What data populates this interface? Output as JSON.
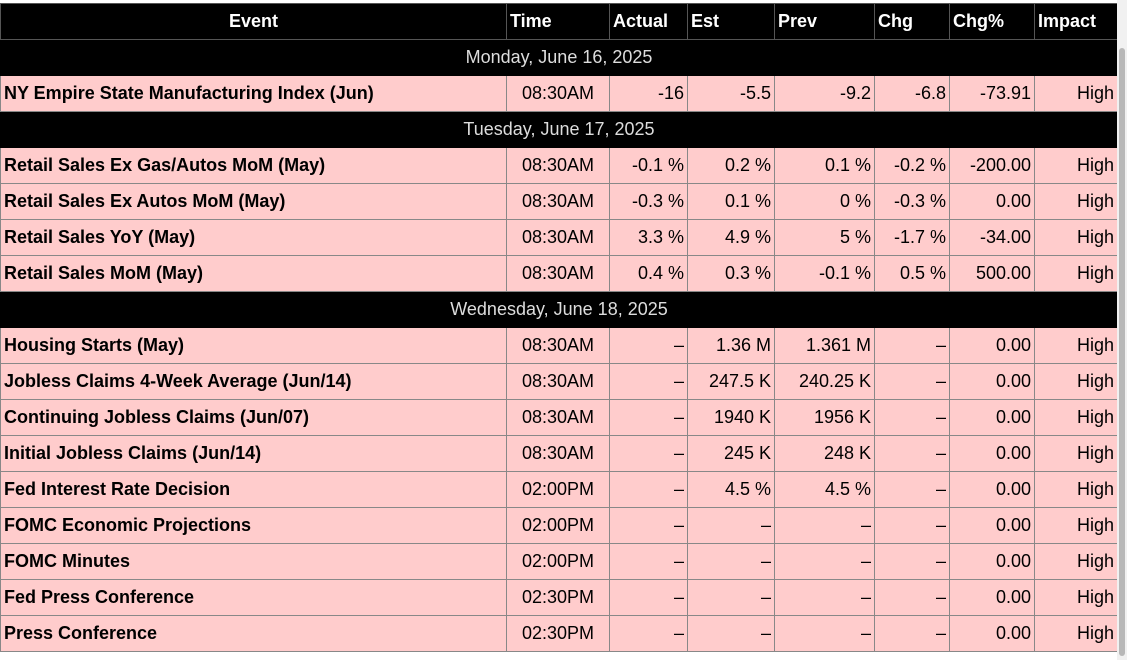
{
  "columns": [
    "Event",
    "Time",
    "Actual",
    "Est",
    "Prev",
    "Chg",
    "Chg%",
    "Impact"
  ],
  "groups": [
    {
      "date": "Monday, June 16, 2025",
      "rows": [
        [
          "NY Empire State Manufacturing Index (Jun)",
          "08:30AM",
          "-16",
          "-5.5",
          "-9.2",
          "-6.8",
          "-73.91",
          "High"
        ]
      ]
    },
    {
      "date": "Tuesday, June 17, 2025",
      "rows": [
        [
          "Retail Sales Ex Gas/Autos MoM (May)",
          "08:30AM",
          "-0.1 %",
          "0.2 %",
          "0.1 %",
          "-0.2 %",
          "-200.00",
          "High"
        ],
        [
          "Retail Sales Ex Autos MoM (May)",
          "08:30AM",
          "-0.3 %",
          "0.1 %",
          "0 %",
          "-0.3 %",
          "0.00",
          "High"
        ],
        [
          "Retail Sales YoY (May)",
          "08:30AM",
          "3.3 %",
          "4.9 %",
          "5 %",
          "-1.7 %",
          "-34.00",
          "High"
        ],
        [
          "Retail Sales MoM (May)",
          "08:30AM",
          "0.4 %",
          "0.3 %",
          "-0.1 %",
          "0.5 %",
          "500.00",
          "High"
        ]
      ]
    },
    {
      "date": "Wednesday, June 18, 2025",
      "rows": [
        [
          "Housing Starts (May)",
          "08:30AM",
          "–",
          "1.36 M",
          "1.361 M",
          "–",
          "0.00",
          "High"
        ],
        [
          "Jobless Claims 4-Week Average (Jun/14)",
          "08:30AM",
          "–",
          "247.5 K",
          "240.25 K",
          "–",
          "0.00",
          "High"
        ],
        [
          "Continuing Jobless Claims (Jun/07)",
          "08:30AM",
          "–",
          "1940 K",
          "1956 K",
          "–",
          "0.00",
          "High"
        ],
        [
          "Initial Jobless Claims (Jun/14)",
          "08:30AM",
          "–",
          "245 K",
          "248 K",
          "–",
          "0.00",
          "High"
        ],
        [
          "Fed Interest Rate Decision",
          "02:00PM",
          "–",
          "4.5 %",
          "4.5 %",
          "–",
          "0.00",
          "High"
        ],
        [
          "FOMC Economic Projections",
          "02:00PM",
          "–",
          "–",
          "–",
          "–",
          "0.00",
          "High"
        ],
        [
          "FOMC Minutes",
          "02:00PM",
          "–",
          "–",
          "–",
          "–",
          "0.00",
          "High"
        ],
        [
          "Fed Press Conference",
          "02:30PM",
          "–",
          "–",
          "–",
          "–",
          "0.00",
          "High"
        ],
        [
          "Press Conference",
          "02:30PM",
          "–",
          "–",
          "–",
          "–",
          "0.00",
          "High"
        ]
      ]
    }
  ]
}
